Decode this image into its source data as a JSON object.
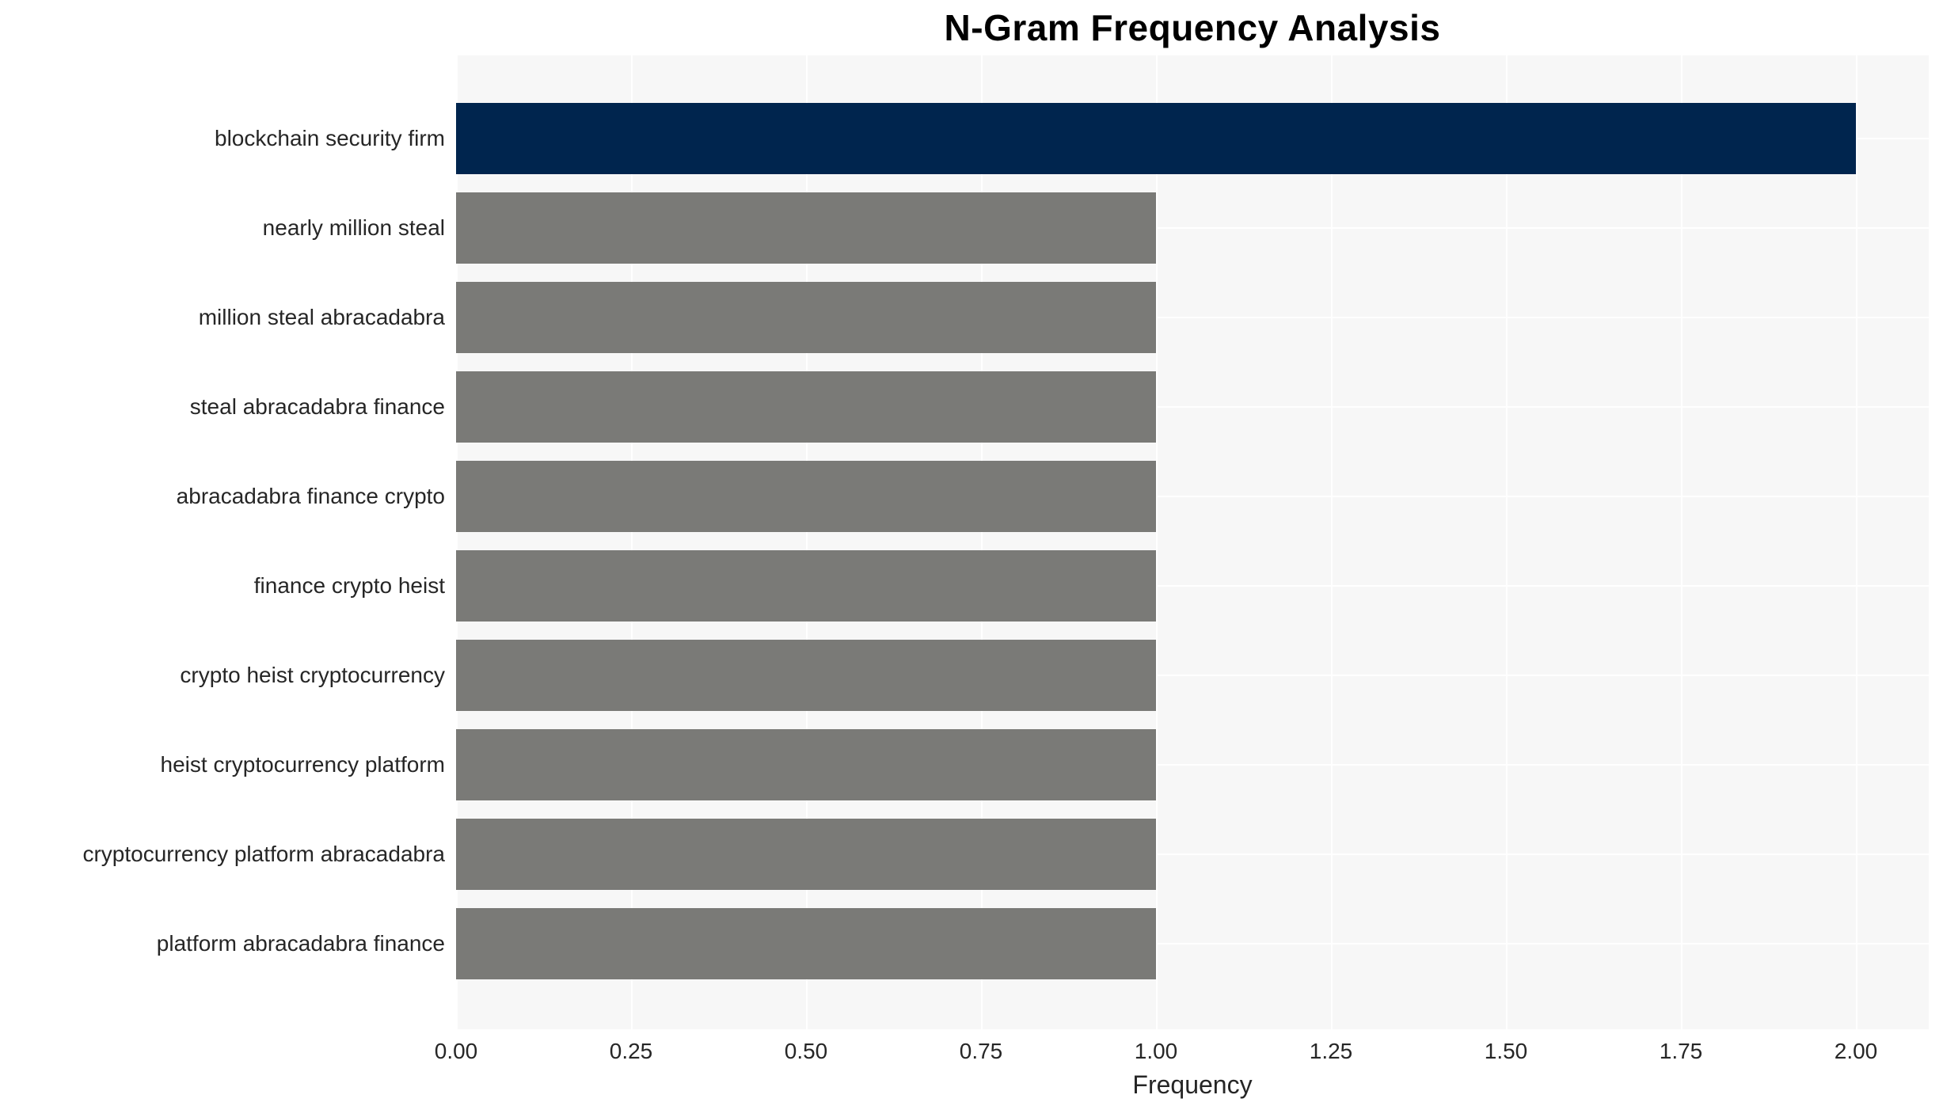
{
  "title": "N-Gram Frequency Analysis",
  "chart_data": {
    "type": "bar",
    "orientation": "horizontal",
    "title": "N-Gram Frequency Analysis",
    "xlabel": "Frequency",
    "ylabel": "",
    "categories": [
      "blockchain security firm",
      "nearly million steal",
      "million steal abracadabra",
      "steal abracadabra finance",
      "abracadabra finance crypto",
      "finance crypto heist",
      "crypto heist cryptocurrency",
      "heist cryptocurrency platform",
      "cryptocurrency platform abracadabra",
      "platform abracadabra finance"
    ],
    "values": [
      2,
      1,
      1,
      1,
      1,
      1,
      1,
      1,
      1,
      1
    ],
    "bar_colors": [
      "#00254e",
      "#7a7a77",
      "#7a7a77",
      "#7a7a77",
      "#7a7a77",
      "#7a7a77",
      "#7a7a77",
      "#7a7a77",
      "#7a7a77",
      "#7a7a77"
    ],
    "xticks": [
      "0.00",
      "0.25",
      "0.50",
      "0.75",
      "1.00",
      "1.25",
      "1.50",
      "1.75",
      "2.00"
    ],
    "xtick_values": [
      0,
      0.25,
      0.5,
      0.75,
      1.0,
      1.25,
      1.5,
      1.75,
      2.0
    ],
    "xlim": [
      0,
      2.1
    ],
    "grid": true,
    "legend": false
  },
  "colors": {
    "page_bg": "#ffffff",
    "plot_bg": "#f7f7f7",
    "grid": "#ffffff",
    "text": "#262626",
    "title_text": "#000000",
    "highlight_bar": "#00254e",
    "default_bar": "#7a7a77"
  }
}
